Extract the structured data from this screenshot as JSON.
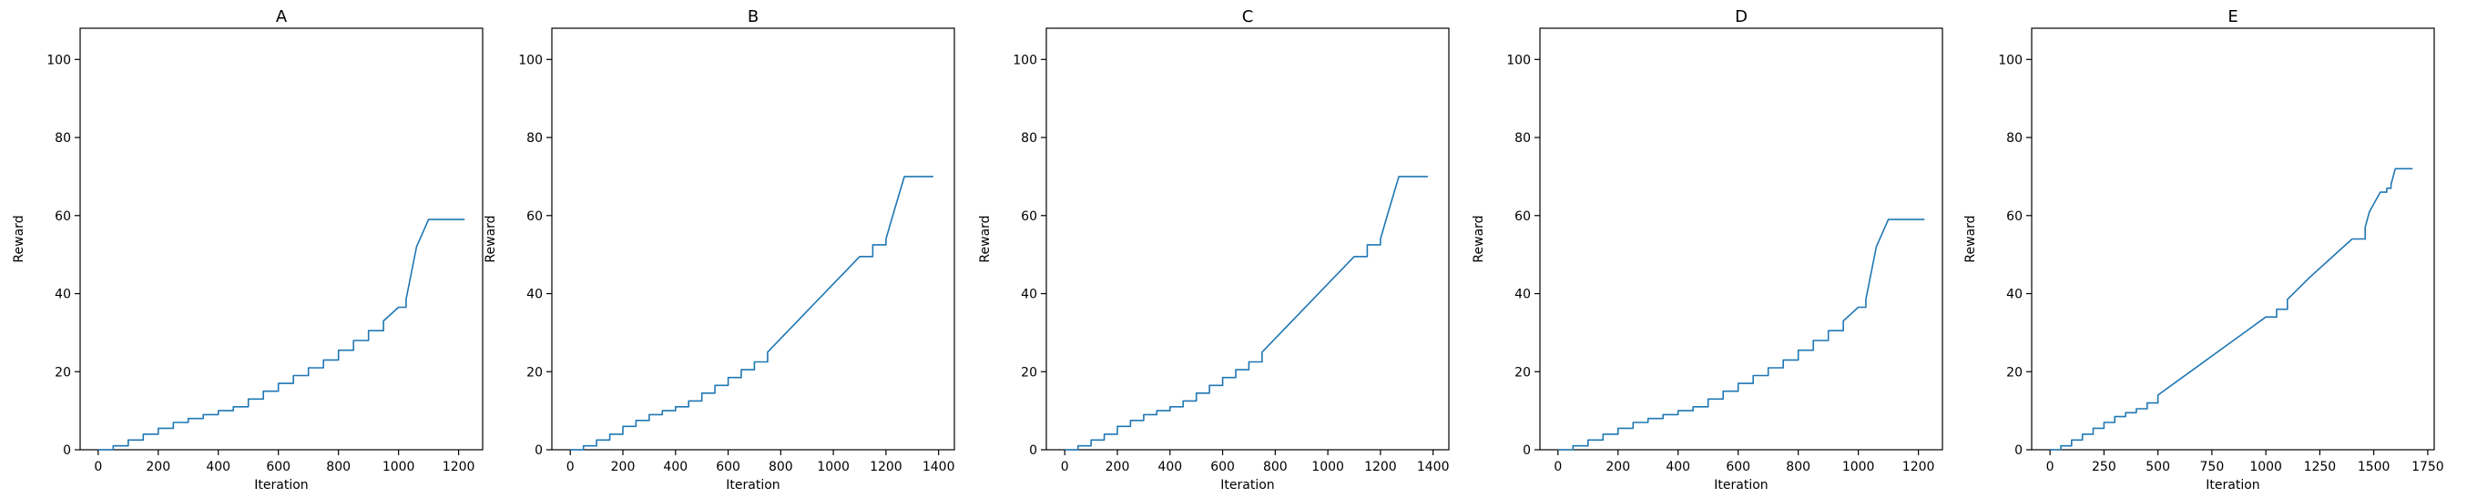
{
  "chart_data": [
    {
      "type": "line",
      "title": "A",
      "xlabel": "Iteration",
      "ylabel": "Reward",
      "xlim": [
        -60,
        1280
      ],
      "ylim": [
        0,
        108
      ],
      "xticks": [
        0,
        200,
        400,
        600,
        800,
        1000,
        1200
      ],
      "xtick_labels": [
        "0",
        "200",
        "400",
        "600",
        "800",
        "1000",
        "1200"
      ],
      "yticks": [
        0,
        20,
        40,
        60,
        80,
        100
      ],
      "ytick_labels": [
        "0",
        "20",
        "40",
        "60",
        "80",
        "100"
      ],
      "grid": false,
      "line_color": "#1f77b4",
      "series": [
        {
          "x": [
            0,
            50,
            100,
            150,
            200,
            250,
            300,
            350,
            400,
            450,
            500,
            550,
            600,
            650,
            700,
            750,
            800,
            850,
            900,
            950,
            1000,
            1025,
            1060,
            1100,
            1150,
            1220
          ],
          "y": [
            0,
            1,
            2.5,
            4,
            5.5,
            7,
            8,
            9,
            10,
            11,
            13,
            15,
            17,
            19,
            21,
            23,
            25.5,
            28,
            30.5,
            33,
            36.5,
            38.5,
            52,
            59,
            59,
            59
          ]
        }
      ]
    },
    {
      "type": "line",
      "title": "B",
      "xlabel": "Iteration",
      "ylabel": "Reward",
      "xlim": [
        -70,
        1460
      ],
      "ylim": [
        0,
        108
      ],
      "xticks": [
        0,
        200,
        400,
        600,
        800,
        1000,
        1200,
        1400
      ],
      "xtick_labels": [
        "0",
        "200",
        "400",
        "600",
        "800",
        "1000",
        "1200",
        "1400"
      ],
      "yticks": [
        0,
        20,
        40,
        60,
        80,
        100
      ],
      "ytick_labels": [
        "0",
        "20",
        "40",
        "60",
        "80",
        "100"
      ],
      "grid": false,
      "line_color": "#1f77b4",
      "series": [
        {
          "x": [
            0,
            50,
            100,
            150,
            200,
            250,
            300,
            350,
            400,
            450,
            500,
            550,
            600,
            650,
            700,
            750,
            800,
            850,
            900,
            950,
            1000,
            1050,
            1100,
            1150,
            1200,
            1230,
            1270,
            1300,
            1380
          ],
          "y": [
            0,
            1,
            2.5,
            4,
            6,
            7.5,
            9,
            10,
            11,
            12.5,
            14.5,
            16.5,
            18.5,
            20.5,
            22.5,
            25,
            28.5,
            32,
            35.5,
            39,
            42.5,
            46,
            49.5,
            52.5,
            54,
            61,
            70,
            70,
            70
          ]
        }
      ]
    },
    {
      "type": "line",
      "title": "C",
      "xlabel": "Iteration",
      "ylabel": "Reward",
      "xlim": [
        -70,
        1460
      ],
      "ylim": [
        0,
        108
      ],
      "xticks": [
        0,
        200,
        400,
        600,
        800,
        1000,
        1200,
        1400
      ],
      "xtick_labels": [
        "0",
        "200",
        "400",
        "600",
        "800",
        "1000",
        "1200",
        "1400"
      ],
      "yticks": [
        0,
        20,
        40,
        60,
        80,
        100
      ],
      "ytick_labels": [
        "0",
        "20",
        "40",
        "60",
        "80",
        "100"
      ],
      "grid": false,
      "line_color": "#1f77b4",
      "series": [
        {
          "x": [
            0,
            50,
            100,
            150,
            200,
            250,
            300,
            350,
            400,
            450,
            500,
            550,
            600,
            650,
            700,
            750,
            800,
            850,
            900,
            950,
            1000,
            1050,
            1100,
            1150,
            1200,
            1230,
            1270,
            1300,
            1380
          ],
          "y": [
            0,
            1,
            2.5,
            4,
            6,
            7.5,
            9,
            10,
            11,
            12.5,
            14.5,
            16.5,
            18.5,
            20.5,
            22.5,
            25,
            28.5,
            32,
            35.5,
            39,
            42.5,
            46,
            49.5,
            52.5,
            54,
            61,
            70,
            70,
            70
          ]
        }
      ]
    },
    {
      "type": "line",
      "title": "D",
      "xlabel": "Iteration",
      "ylabel": "Reward",
      "xlim": [
        -60,
        1280
      ],
      "ylim": [
        0,
        108
      ],
      "xticks": [
        0,
        200,
        400,
        600,
        800,
        1000,
        1200
      ],
      "xtick_labels": [
        "0",
        "200",
        "400",
        "600",
        "800",
        "1000",
        "1200"
      ],
      "yticks": [
        0,
        20,
        40,
        60,
        80,
        100
      ],
      "ytick_labels": [
        "0",
        "20",
        "40",
        "60",
        "80",
        "100"
      ],
      "grid": false,
      "line_color": "#1f77b4",
      "series": [
        {
          "x": [
            0,
            50,
            100,
            150,
            200,
            250,
            300,
            350,
            400,
            450,
            500,
            550,
            600,
            650,
            700,
            750,
            800,
            850,
            900,
            950,
            1000,
            1025,
            1060,
            1100,
            1150,
            1220
          ],
          "y": [
            0,
            1,
            2.5,
            4,
            5.5,
            7,
            8,
            9,
            10,
            11,
            13,
            15,
            17,
            19,
            21,
            23,
            25.5,
            28,
            30.5,
            33,
            36.5,
            38.5,
            52,
            59,
            59,
            59
          ]
        }
      ]
    },
    {
      "type": "line",
      "title": "E",
      "xlabel": "Iteration",
      "ylabel": "Reward",
      "xlim": [
        -85,
        1780
      ],
      "ylim": [
        0,
        108
      ],
      "xticks": [
        0,
        250,
        500,
        750,
        1000,
        1250,
        1500,
        1750
      ],
      "xtick_labels": [
        "0",
        "250",
        "500",
        "750",
        "1000",
        "1250",
        "1500",
        "1750"
      ],
      "yticks": [
        0,
        20,
        40,
        60,
        80,
        100
      ],
      "ytick_labels": [
        "0",
        "20",
        "40",
        "60",
        "80",
        "100"
      ],
      "grid": false,
      "line_color": "#1f77b4",
      "series": [
        {
          "x": [
            0,
            50,
            100,
            150,
            200,
            250,
            300,
            350,
            400,
            450,
            500,
            600,
            700,
            800,
            900,
            1000,
            1050,
            1100,
            1200,
            1300,
            1400,
            1460,
            1480,
            1530,
            1560,
            1580,
            1600,
            1680
          ],
          "y": [
            0,
            1,
            2.5,
            4,
            5.5,
            7,
            8.5,
            9.5,
            10.5,
            12,
            14,
            18,
            22,
            26,
            30,
            34,
            36,
            38.5,
            44,
            49,
            54,
            57,
            61,
            66,
            67,
            68,
            72,
            72
          ]
        }
      ]
    }
  ]
}
